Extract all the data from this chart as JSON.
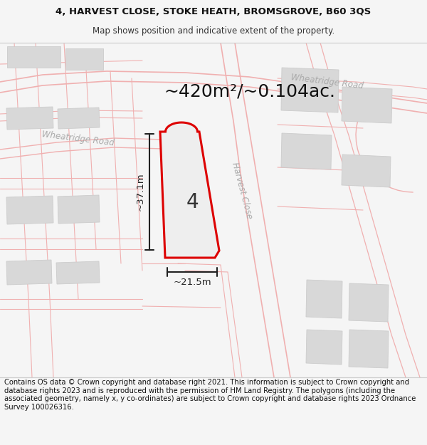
{
  "title_line1": "4, HARVEST CLOSE, STOKE HEATH, BROMSGROVE, B60 3QS",
  "title_line2": "Map shows position and indicative extent of the property.",
  "area_text": "~420m²/~0.104ac.",
  "plot_number": "4",
  "dim_height": "~37.1m",
  "dim_width": "~21.5m",
  "road_label_upper_right": "Wheatridge Road",
  "road_label_left": "Wheatridge Road",
  "road_label_harvest": "Harvest Close",
  "footer_text": "Contains OS data © Crown copyright and database right 2021. This information is subject to Crown copyright and database rights 2023 and is reproduced with the permission of HM Land Registry. The polygons (including the associated geometry, namely x, y co-ordinates) are subject to Crown copyright and database rights 2023 Ordnance Survey 100026316.",
  "bg_color": "#f5f5f5",
  "map_bg": "#ffffff",
  "plot_fill": "#eeeeee",
  "plot_outline": "#dd0000",
  "road_color": "#f0b0b0",
  "road_text_color": "#aaaaaa",
  "building_fill": "#d8d8d8",
  "building_edge": "#cccccc",
  "dim_color": "#222222",
  "title_fontsize": 9.5,
  "footer_fontsize": 7.2,
  "area_fontsize": 18
}
